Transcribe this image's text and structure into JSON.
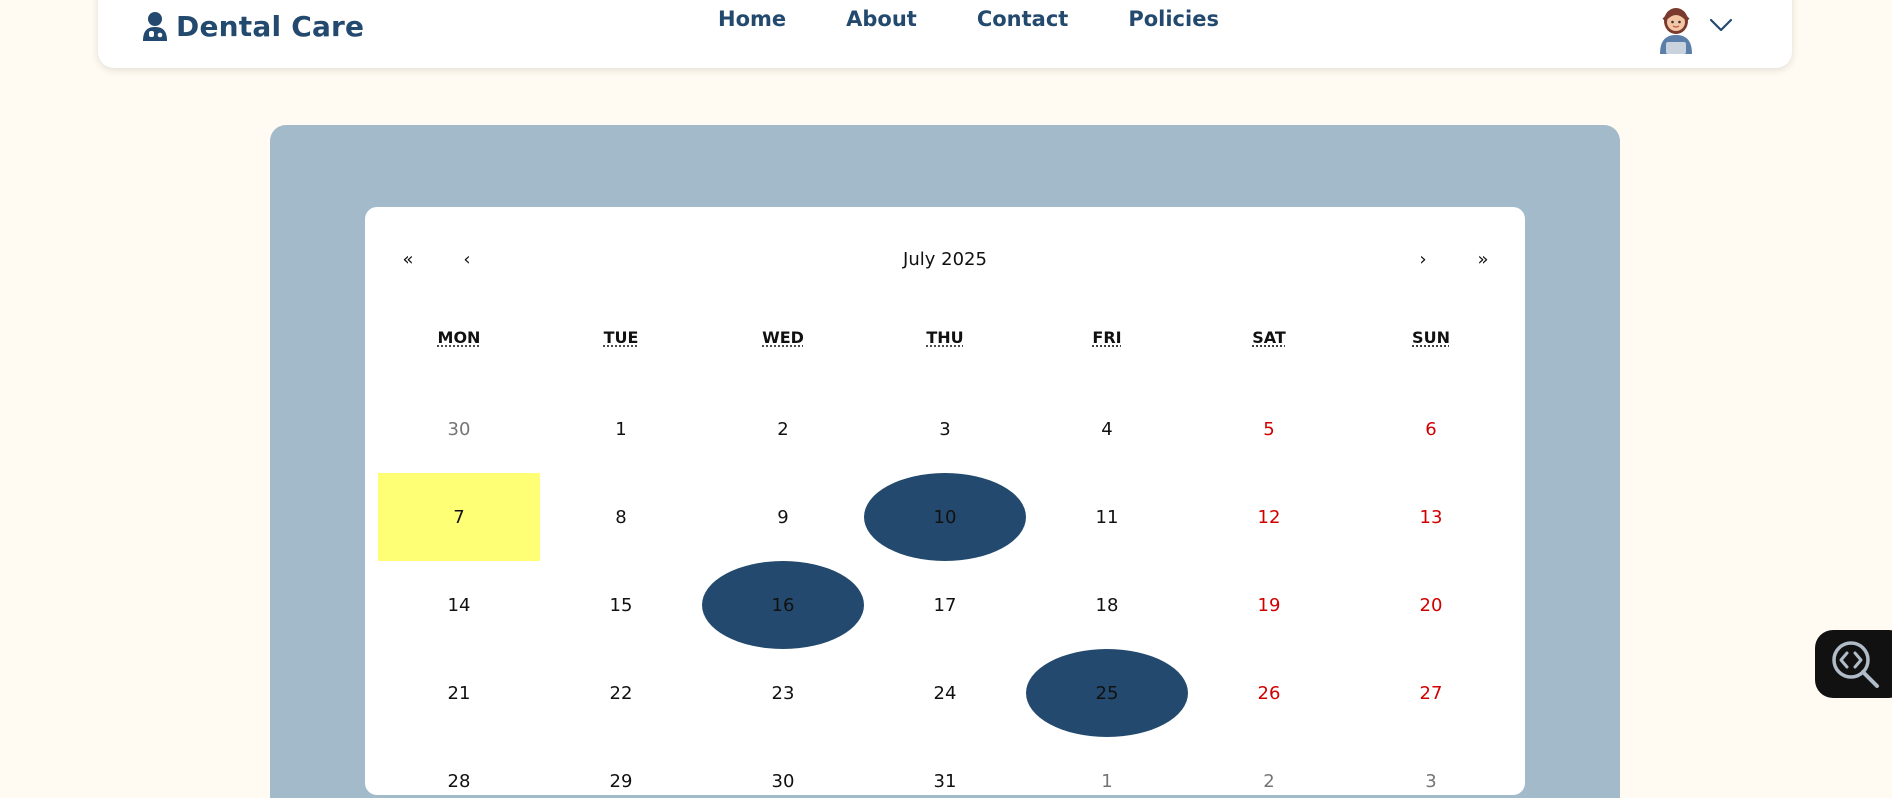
{
  "brand": {
    "name": "Dental Care",
    "icon": "doctor-icon"
  },
  "nav": {
    "links": [
      {
        "label": "Home"
      },
      {
        "label": "About"
      },
      {
        "label": "Contact"
      },
      {
        "label": "Policies"
      }
    ]
  },
  "user": {
    "avatar": "avatar-image",
    "menu_icon": "chevron-down-icon"
  },
  "calendar": {
    "month_label": "July 2025",
    "nav": {
      "prev_year": "«",
      "prev_month": "‹",
      "next_month": "›",
      "next_year": "»"
    },
    "weekdays": [
      "MON",
      "TUE",
      "WED",
      "THU",
      "FRI",
      "SAT",
      "SUN"
    ],
    "weeks": [
      [
        {
          "d": "30",
          "type": "other"
        },
        {
          "d": "1"
        },
        {
          "d": "2"
        },
        {
          "d": "3"
        },
        {
          "d": "4"
        },
        {
          "d": "5",
          "type": "weekend"
        },
        {
          "d": "6",
          "type": "weekend"
        }
      ],
      [
        {
          "d": "7",
          "type": "today"
        },
        {
          "d": "8"
        },
        {
          "d": "9"
        },
        {
          "d": "10",
          "type": "booked"
        },
        {
          "d": "11"
        },
        {
          "d": "12",
          "type": "weekend"
        },
        {
          "d": "13",
          "type": "weekend"
        }
      ],
      [
        {
          "d": "14"
        },
        {
          "d": "15"
        },
        {
          "d": "16",
          "type": "booked"
        },
        {
          "d": "17"
        },
        {
          "d": "18"
        },
        {
          "d": "19",
          "type": "weekend"
        },
        {
          "d": "20",
          "type": "weekend"
        }
      ],
      [
        {
          "d": "21"
        },
        {
          "d": "22"
        },
        {
          "d": "23"
        },
        {
          "d": "24"
        },
        {
          "d": "25",
          "type": "booked"
        },
        {
          "d": "26",
          "type": "weekend"
        },
        {
          "d": "27",
          "type": "weekend"
        }
      ],
      [
        {
          "d": "28"
        },
        {
          "d": "29"
        },
        {
          "d": "30"
        },
        {
          "d": "31"
        },
        {
          "d": "1",
          "type": "other"
        },
        {
          "d": "2",
          "type": "other"
        },
        {
          "d": "3",
          "type": "other"
        }
      ]
    ]
  },
  "colors": {
    "page_bg": "#fffbf2",
    "brand": "#234a6e",
    "panel": "#a3bacb",
    "today_highlight": "#ffff76",
    "booked": "#234a6e",
    "weekend": "#d10000",
    "muted": "#757575"
  },
  "floating_tool": {
    "icon": "code-search-icon"
  }
}
